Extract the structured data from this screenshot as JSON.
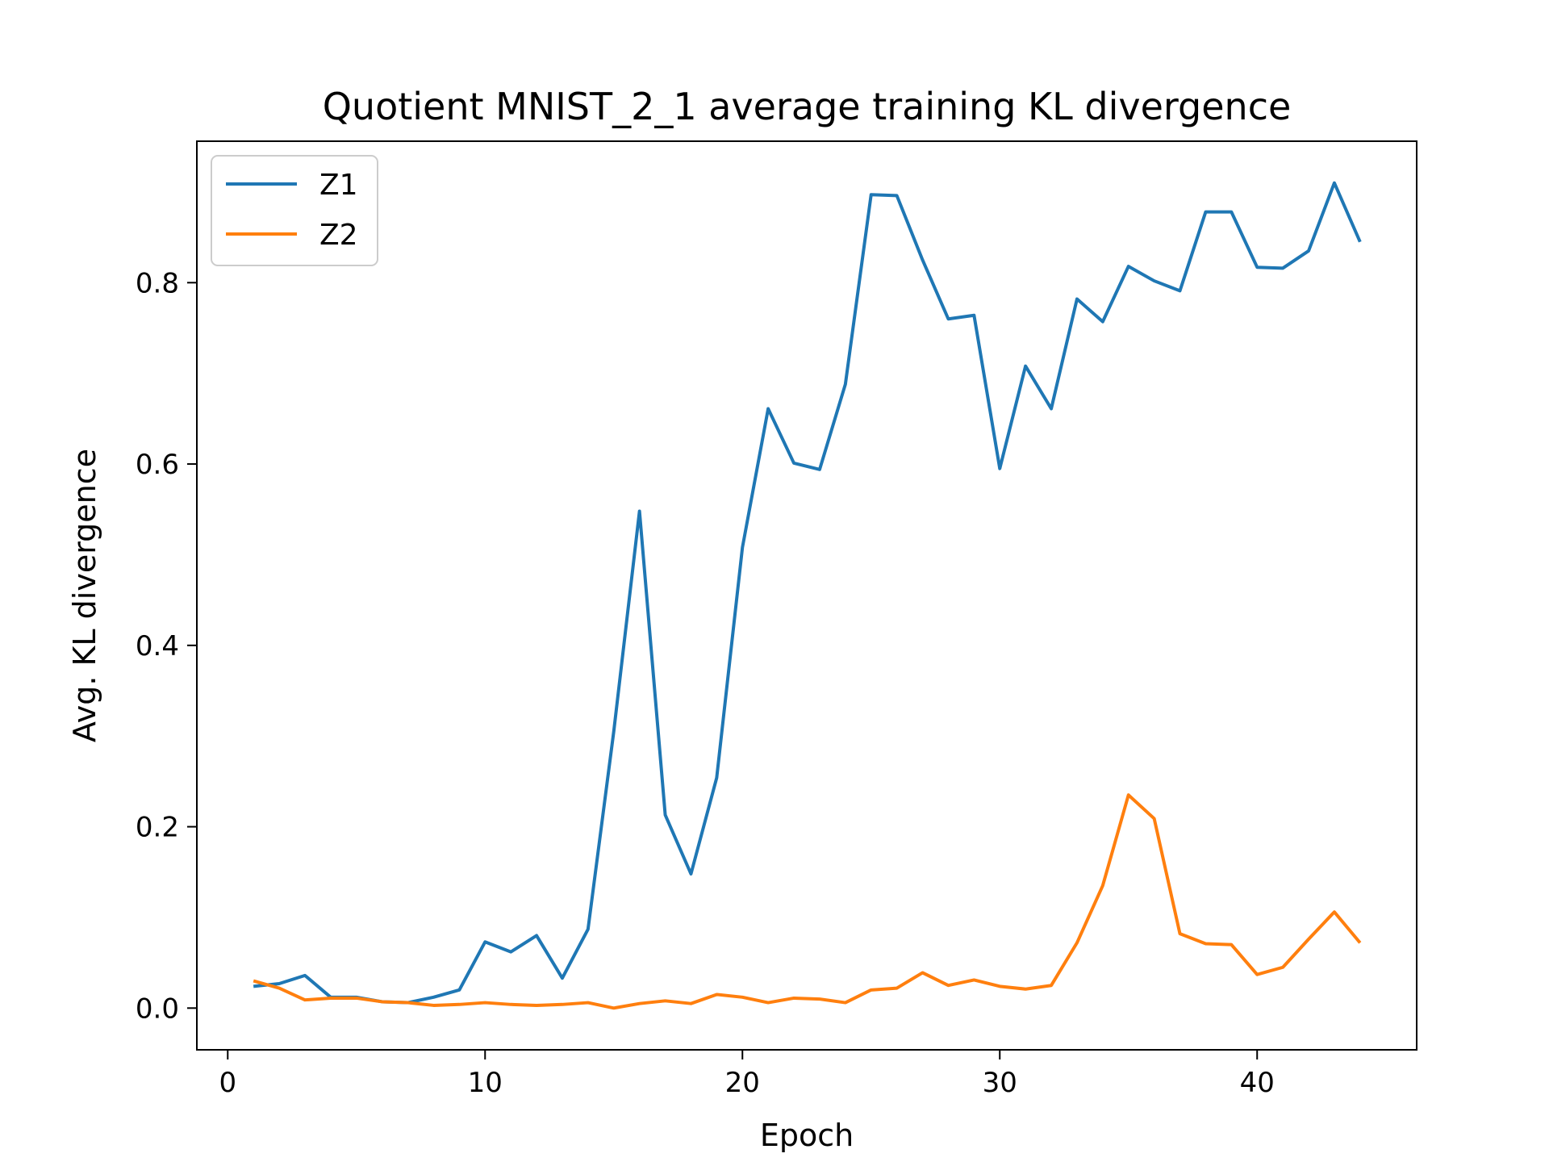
{
  "chart_data": {
    "type": "line",
    "title": "Quotient MNIST_2_1 average training KL divergence",
    "xlabel": "Epoch",
    "ylabel": "Avg. KL divergence",
    "xlim": [
      -1.2,
      46.2
    ],
    "ylim": [
      -0.046,
      0.956
    ],
    "x_ticks": [
      0,
      10,
      20,
      30,
      40
    ],
    "x_tick_labels": [
      "0",
      "10",
      "20",
      "30",
      "40"
    ],
    "y_ticks": [
      0.0,
      0.2,
      0.4,
      0.6,
      0.8
    ],
    "y_tick_labels": [
      "0.0",
      "0.2",
      "0.4",
      "0.6",
      "0.8"
    ],
    "grid": false,
    "legend_position": "upper-left",
    "x": [
      1,
      2,
      3,
      4,
      5,
      6,
      7,
      8,
      9,
      10,
      11,
      12,
      13,
      14,
      15,
      16,
      17,
      18,
      19,
      20,
      21,
      22,
      23,
      24,
      25,
      26,
      27,
      28,
      29,
      30,
      31,
      32,
      33,
      34,
      35,
      36,
      37,
      38,
      39,
      40,
      41,
      42,
      43,
      44
    ],
    "series": [
      {
        "name": "Z1",
        "color": "#1f77b4",
        "values": [
          0.024,
          0.027,
          0.036,
          0.012,
          0.012,
          0.007,
          0.006,
          0.012,
          0.02,
          0.073,
          0.062,
          0.08,
          0.033,
          0.087,
          0.305,
          0.548,
          0.213,
          0.148,
          0.254,
          0.508,
          0.661,
          0.601,
          0.594,
          0.688,
          0.897,
          0.896,
          0.825,
          0.76,
          0.764,
          0.595,
          0.708,
          0.661,
          0.782,
          0.757,
          0.818,
          0.802,
          0.791,
          0.878,
          0.878,
          0.817,
          0.816,
          0.835,
          0.91,
          0.845
        ]
      },
      {
        "name": "Z2",
        "color": "#ff7f0e",
        "values": [
          0.03,
          0.022,
          0.009,
          0.011,
          0.011,
          0.007,
          0.006,
          0.003,
          0.004,
          0.006,
          0.004,
          0.003,
          0.004,
          0.006,
          0.0,
          0.005,
          0.008,
          0.005,
          0.015,
          0.012,
          0.006,
          0.011,
          0.01,
          0.006,
          0.02,
          0.022,
          0.039,
          0.025,
          0.031,
          0.024,
          0.021,
          0.025,
          0.072,
          0.135,
          0.235,
          0.209,
          0.082,
          0.071,
          0.07,
          0.037,
          0.045,
          0.076,
          0.106,
          0.072
        ]
      }
    ]
  }
}
